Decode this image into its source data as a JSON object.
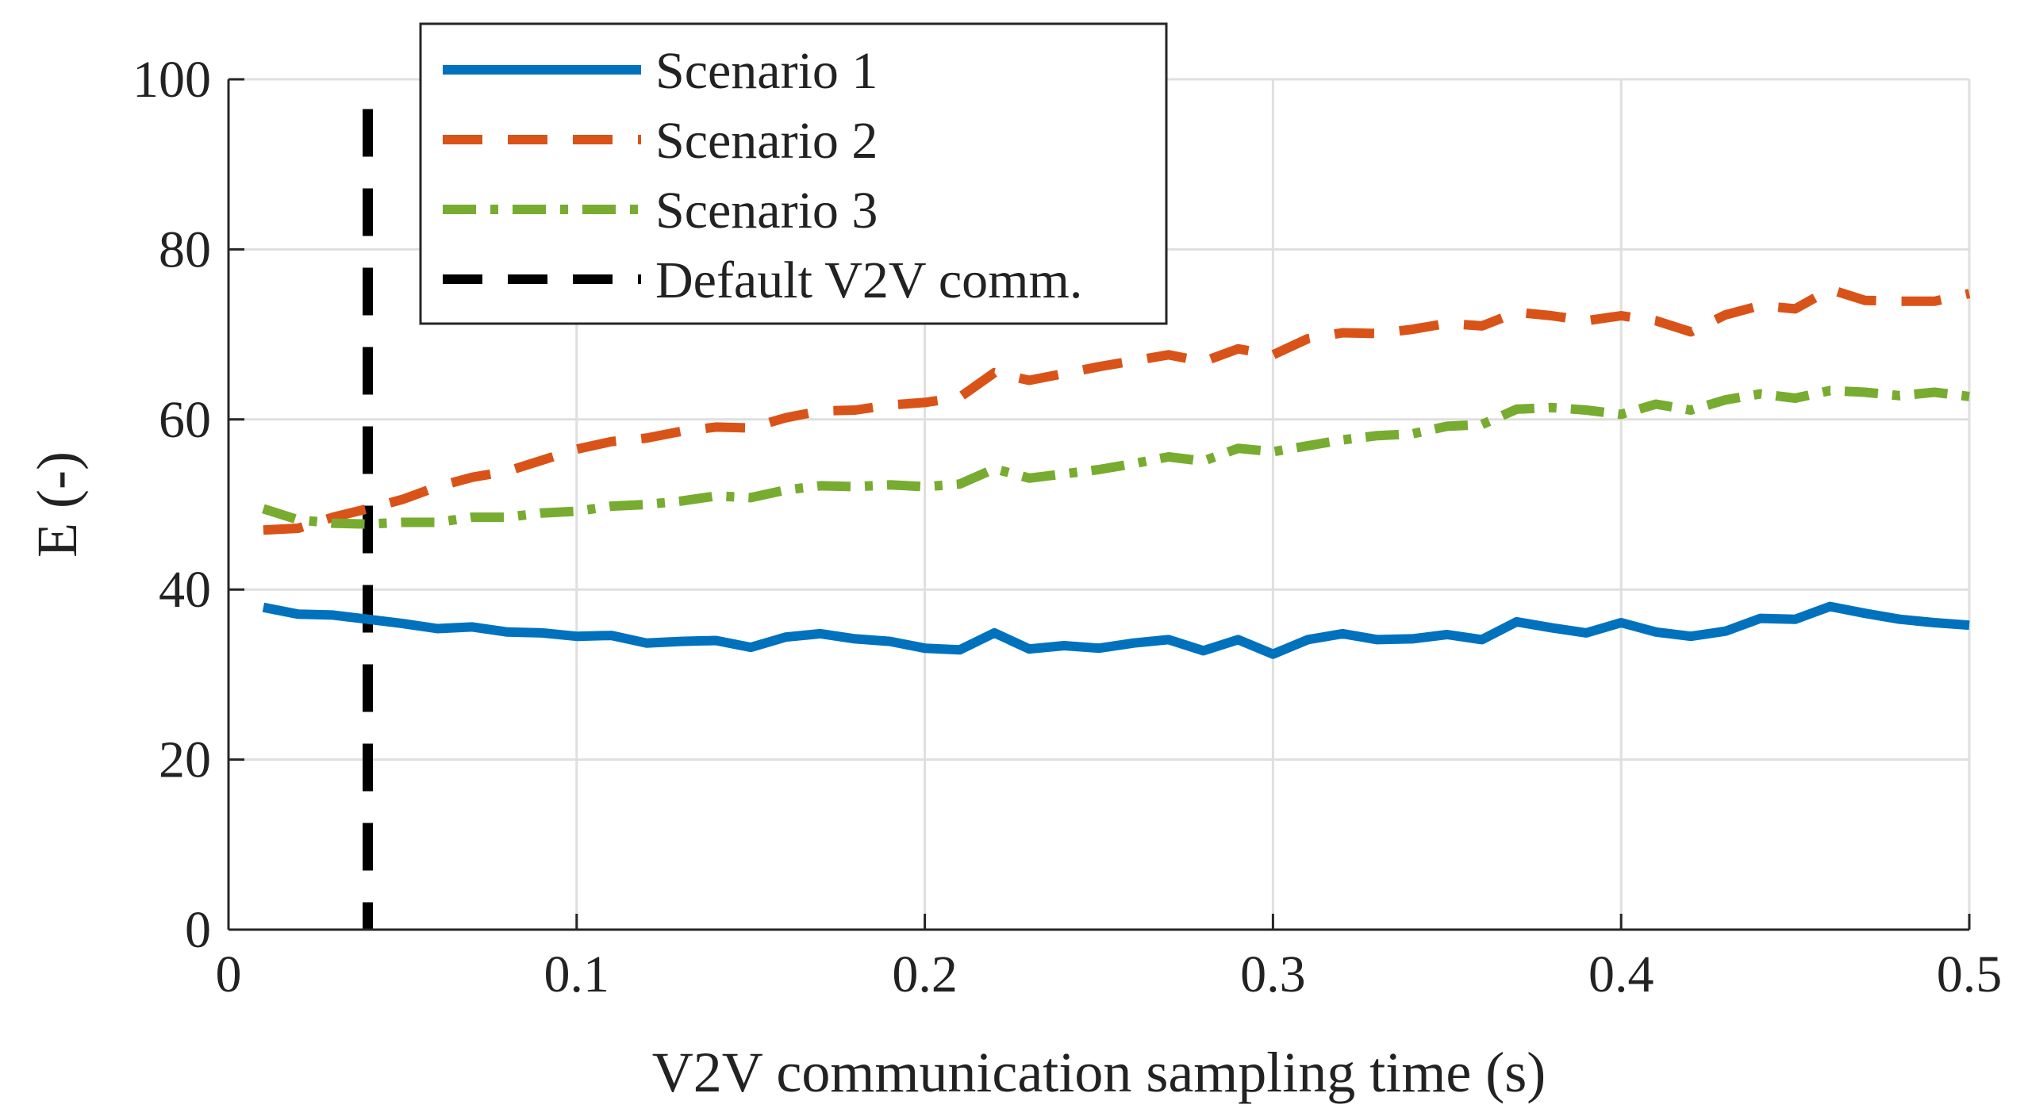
{
  "chart_data": {
    "type": "line",
    "title": "",
    "xlabel": "V2V communication sampling time (s)",
    "ylabel": "E (-)",
    "xlim": [
      0,
      0.5
    ],
    "ylim": [
      0,
      100
    ],
    "xticks": [
      0,
      0.1,
      0.2,
      0.3,
      0.4,
      0.5
    ],
    "xtick_labels": [
      "0",
      "0.1",
      "0.2",
      "0.3",
      "0.4",
      "0.5"
    ],
    "yticks": [
      0,
      20,
      40,
      60,
      80,
      100
    ],
    "ytick_labels": [
      "0",
      "20",
      "40",
      "60",
      "80",
      "100"
    ],
    "grid": true,
    "legend_position": "top-left",
    "x": [
      0.01,
      0.02,
      0.03,
      0.04,
      0.05,
      0.06,
      0.07,
      0.08,
      0.09,
      0.1,
      0.11,
      0.12,
      0.13,
      0.14,
      0.15,
      0.16,
      0.17,
      0.18,
      0.19,
      0.2,
      0.21,
      0.22,
      0.23,
      0.24,
      0.25,
      0.26,
      0.27,
      0.28,
      0.29,
      0.3,
      0.31,
      0.32,
      0.33,
      0.34,
      0.35,
      0.36,
      0.37,
      0.38,
      0.39,
      0.4,
      0.41,
      0.42,
      0.43,
      0.44,
      0.45,
      0.46,
      0.47,
      0.48,
      0.49,
      0.5
    ],
    "series": [
      {
        "name": "Scenario 1",
        "color": "#0072BD",
        "style": "solid",
        "values": [
          37.9,
          37.1,
          37.0,
          36.5,
          36.0,
          35.4,
          35.6,
          35.0,
          34.9,
          34.5,
          34.6,
          33.7,
          33.9,
          34.0,
          33.2,
          34.4,
          34.8,
          34.2,
          33.9,
          33.1,
          32.9,
          34.9,
          33.0,
          33.4,
          33.1,
          33.7,
          34.1,
          32.8,
          34.1,
          32.4,
          34.1,
          34.8,
          34.1,
          34.2,
          34.7,
          34.1,
          36.2,
          35.5,
          34.9,
          36.1,
          35.0,
          34.5,
          35.1,
          36.6,
          36.5,
          38.0,
          37.2,
          36.5,
          36.1,
          35.8
        ]
      },
      {
        "name": "Scenario 2",
        "color": "#D95319",
        "style": "dashed",
        "values": [
          47.0,
          47.2,
          48.5,
          49.5,
          50.6,
          52.1,
          53.2,
          53.9,
          55.2,
          56.5,
          57.4,
          57.8,
          58.6,
          59.1,
          59.0,
          60.2,
          61.0,
          61.1,
          61.7,
          62.0,
          62.6,
          65.5,
          64.6,
          65.4,
          66.2,
          66.9,
          67.6,
          66.8,
          68.3,
          67.6,
          69.5,
          70.2,
          70.1,
          70.6,
          71.3,
          71.0,
          72.6,
          72.2,
          71.6,
          72.2,
          71.6,
          70.3,
          72.3,
          73.4,
          73.0,
          75.3,
          74.0,
          73.9,
          73.9,
          74.8
        ]
      },
      {
        "name": "Scenario 3",
        "color": "#77AC30",
        "style": "dash-dot",
        "values": [
          49.5,
          48.2,
          47.8,
          47.7,
          47.9,
          47.9,
          48.5,
          48.5,
          49.0,
          49.2,
          49.8,
          50.0,
          50.4,
          51.0,
          50.8,
          51.7,
          52.2,
          52.1,
          52.3,
          52.1,
          52.4,
          54.2,
          53.1,
          53.6,
          54.1,
          54.8,
          55.6,
          55.1,
          56.6,
          56.2,
          56.9,
          57.6,
          58.1,
          58.3,
          59.2,
          59.4,
          61.2,
          61.4,
          61.1,
          60.6,
          61.8,
          61.1,
          62.3,
          63.0,
          62.5,
          63.4,
          63.2,
          62.8,
          63.2,
          62.7
        ]
      }
    ],
    "vertical_line": {
      "name": "Default V2V comm.",
      "x": 0.04,
      "color": "#000000",
      "style": "dashed"
    }
  }
}
